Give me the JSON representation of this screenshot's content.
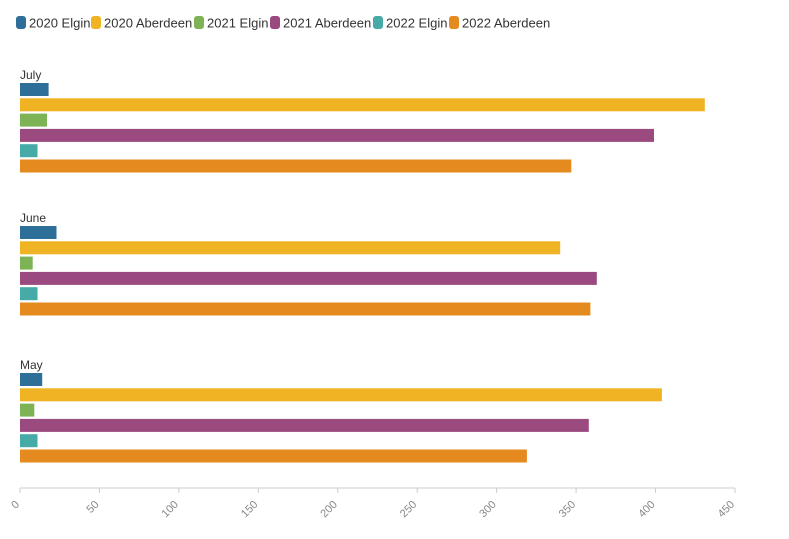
{
  "chart_data": {
    "type": "bar",
    "orientation": "horizontal",
    "categories": [
      "July",
      "June",
      "May"
    ],
    "series": [
      {
        "name": "2020 Elgin",
        "color": "#2e6f9a",
        "values": [
          18,
          23,
          14
        ]
      },
      {
        "name": "2020 Aberdeen",
        "color": "#f0b323",
        "values": [
          431,
          340,
          404
        ]
      },
      {
        "name": "2021 Elgin",
        "color": "#7db354",
        "values": [
          17,
          8,
          9
        ]
      },
      {
        "name": "2021 Aberdeen",
        "color": "#9b4a7f",
        "values": [
          399,
          363,
          358
        ]
      },
      {
        "name": "2022 Elgin",
        "color": "#46aaa6",
        "values": [
          11,
          11,
          11
        ]
      },
      {
        "name": "2022 Aberdeen",
        "color": "#e58a1e",
        "values": [
          347,
          359,
          319
        ]
      }
    ],
    "xlim": [
      0,
      450
    ],
    "xticks": [
      0,
      50,
      100,
      150,
      200,
      250,
      300,
      350,
      400,
      450
    ],
    "grid": false,
    "legend_position": "top-left"
  }
}
